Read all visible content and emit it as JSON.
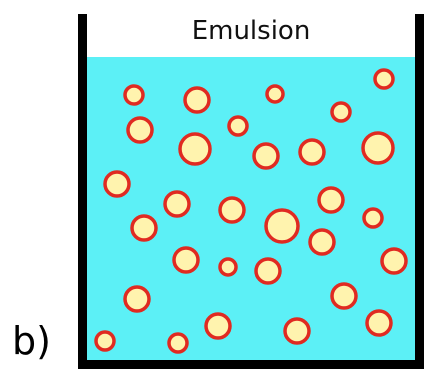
{
  "panel_label": "b)",
  "title": "Emulsion",
  "colors": {
    "liquid": "#5CF0F6",
    "wall": "#000000",
    "droplet_fill": "#FFF3AE",
    "droplet_stroke": "#E02A21"
  }
}
